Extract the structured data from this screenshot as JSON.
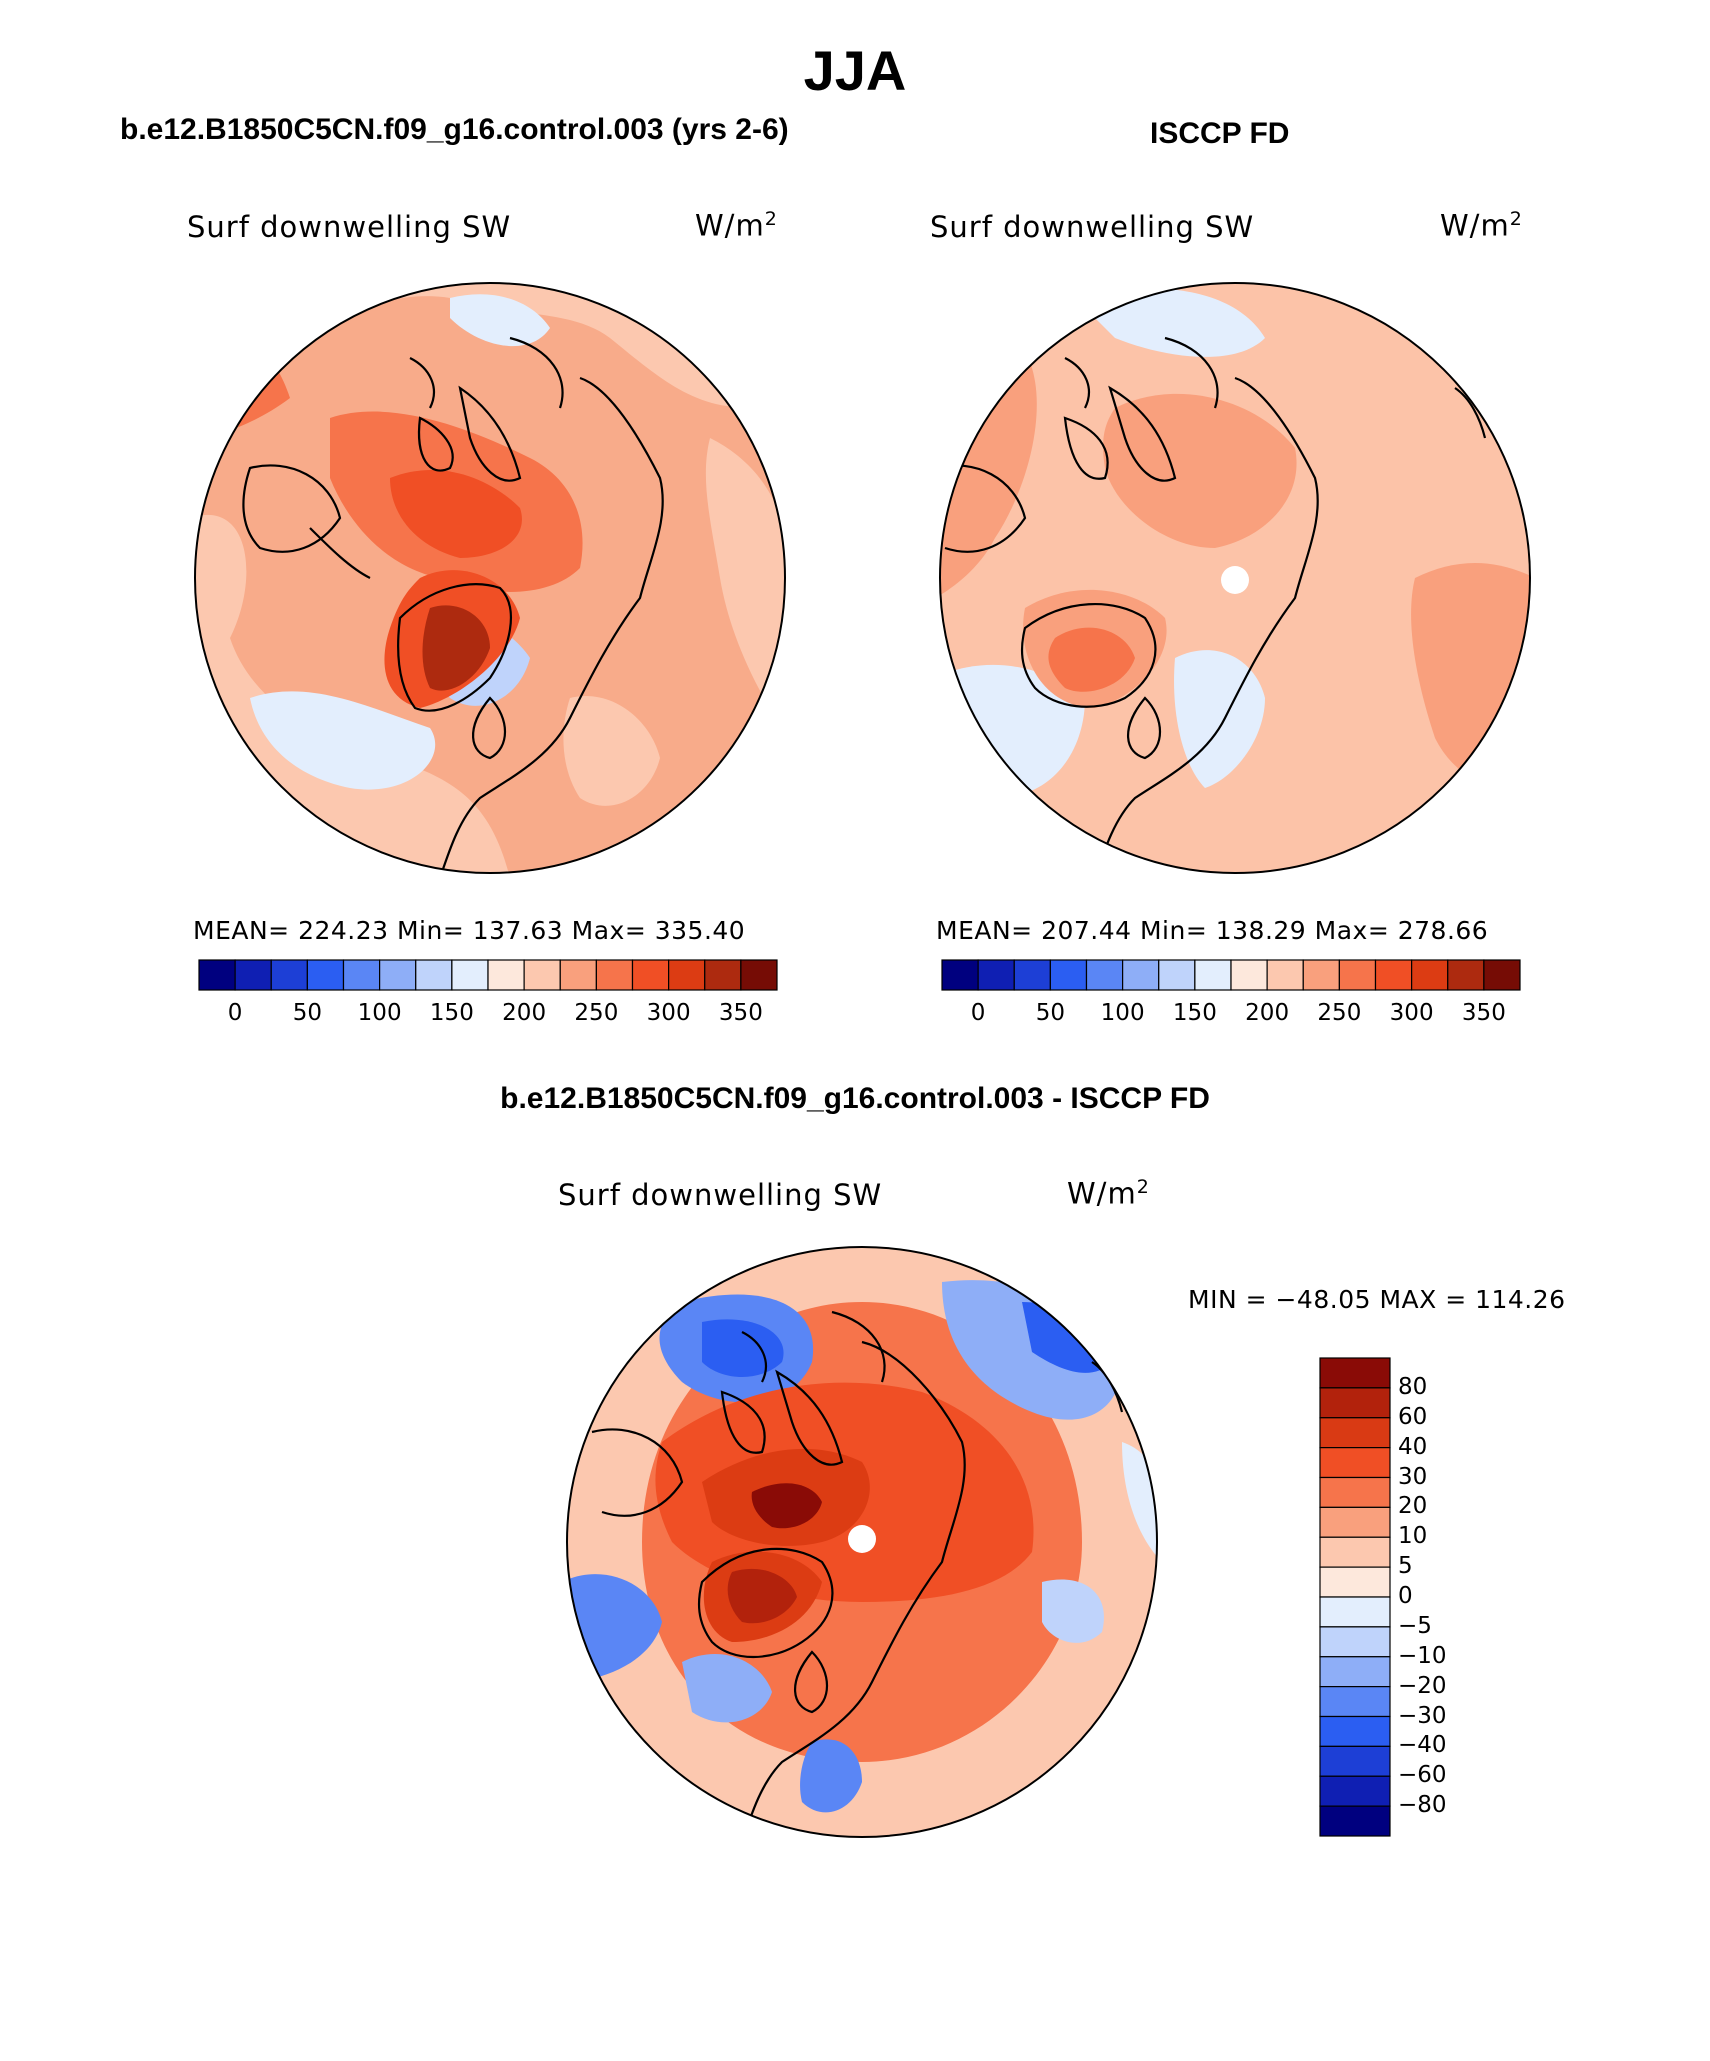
{
  "figure": {
    "title": "JJA",
    "left_panel_title": "b.e12.B1850C5CN.f09_g16.control.003 (yrs 2-6)",
    "right_panel_title": "ISCCP FD",
    "diff_panel_title": "b.e12.B1850C5CN.f09_g16.control.003 - ISCCP FD"
  },
  "panels": {
    "model": {
      "variable": "Surf downwelling SW",
      "units": "W/m",
      "units_sup": "2",
      "stats": "MEAN= 224.23   Min= 137.63   Max= 335.40"
    },
    "obs": {
      "variable": "Surf downwelling SW",
      "units": "W/m",
      "units_sup": "2",
      "stats": "MEAN= 207.44   Min= 138.29   Max= 278.66"
    },
    "diff": {
      "variable": "Surf downwelling SW",
      "units": "W/m",
      "units_sup": "2",
      "stats": "MIN = −48.05 MAX = 114.26"
    }
  },
  "colorbar": {
    "colors": [
      "#00007f",
      "#0f1fb3",
      "#1d3fd6",
      "#2b5ef2",
      "#5a86f5",
      "#8eaef7",
      "#bfd3fb",
      "#e3eefd",
      "#fde8dc",
      "#fcc8af",
      "#f9a07d",
      "#f6744b",
      "#f04f25",
      "#dc3c13",
      "#ad2a0f",
      "#760c05"
    ],
    "ticks": [
      "0",
      "50",
      "100",
      "150",
      "200",
      "250",
      "300",
      "350"
    ]
  },
  "diff_colorbar": {
    "colors": [
      "#8a0b06",
      "#b2220c",
      "#d93a14",
      "#f04f25",
      "#f6744b",
      "#f9a07d",
      "#fcc8af",
      "#fde8dc",
      "#e3eefd",
      "#bfd3fb",
      "#8eaef7",
      "#5a86f5",
      "#2b5ef2",
      "#1d3fd6",
      "#0f1fb3",
      "#00007f"
    ],
    "labels": [
      "80",
      "60",
      "40",
      "30",
      "20",
      "10",
      "5",
      "0",
      "−5",
      "−10",
      "−20",
      "−30",
      "−40",
      "−60",
      "−80"
    ]
  },
  "map_fill": {
    "model_base": "#f8ab8a",
    "obs_base": "#fcc3a8",
    "diff_base": "#f6744b"
  }
}
